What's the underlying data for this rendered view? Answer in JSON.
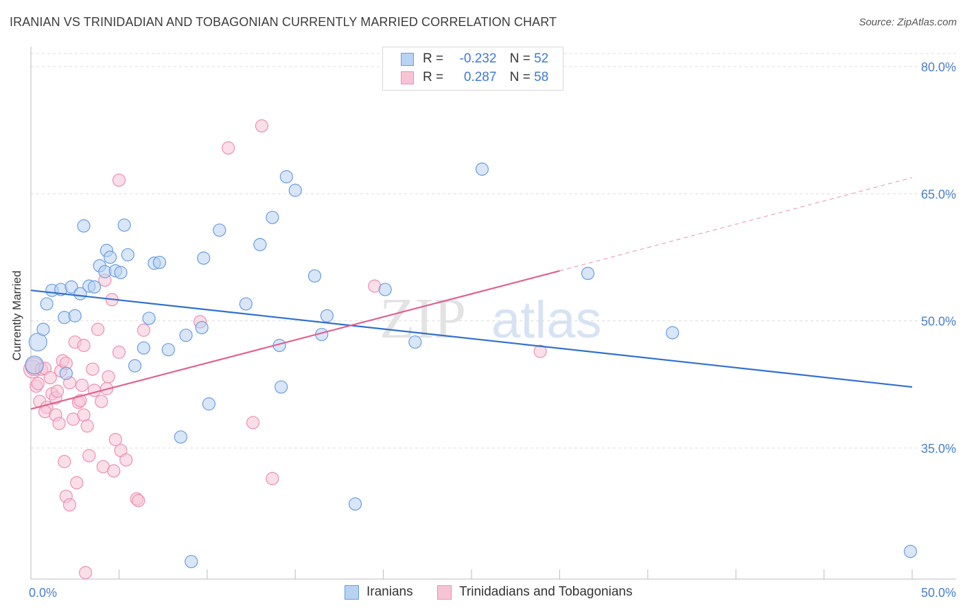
{
  "title": "IRANIAN VS TRINIDADIAN AND TOBAGONIAN CURRENTLY MARRIED CORRELATION CHART",
  "source": "Source: ZipAtlas.com",
  "watermark": {
    "zip": "ZIP",
    "atlas": "atlas"
  },
  "legend": {
    "r_label": "R =",
    "n_label": "N =",
    "rows": [
      {
        "r": "-0.232",
        "n": "52"
      },
      {
        "r": "0.287",
        "n": "58"
      }
    ]
  },
  "colors": {
    "blue_fill": "#b8d2f2",
    "blue_stroke": "#6a9be0",
    "blue_line": "#2f6fd0",
    "pink_fill": "#f7c4d6",
    "pink_stroke": "#ea8fb0",
    "pink_line": "#e06090",
    "grid": "#dcdcdc",
    "tick_text": "#4a7fc9"
  },
  "chart_data": {
    "type": "scatter",
    "ylabel": "Currently Married",
    "xlim": [
      0,
      50
    ],
    "ylim": [
      20,
      82
    ],
    "y_ticks": [
      {
        "value": 80,
        "label": "80.0%"
      },
      {
        "value": 65,
        "label": "65.0%"
      },
      {
        "value": 50,
        "label": "50.0%"
      },
      {
        "value": 35,
        "label": "35.0%"
      }
    ],
    "x_tick_labels": [
      {
        "value": 0,
        "label": "0.0%"
      },
      {
        "value": 50,
        "label": "50.0%"
      }
    ],
    "grid": true,
    "legend_position": "top-center",
    "series": [
      {
        "name": "Iranians",
        "color": "blue",
        "trend": {
          "x": [
            0,
            50
          ],
          "y": [
            53.6,
            42.2
          ],
          "dashed_from": null
        },
        "points": [
          [
            0.2,
            44.8
          ],
          [
            0.4,
            47.5
          ],
          [
            0.7,
            49.0
          ],
          [
            0.9,
            52.0
          ],
          [
            1.2,
            53.6
          ],
          [
            1.7,
            53.7
          ],
          [
            1.9,
            50.4
          ],
          [
            2.0,
            43.8
          ],
          [
            2.5,
            50.6
          ],
          [
            2.3,
            54.0
          ],
          [
            2.8,
            53.2
          ],
          [
            3.0,
            61.2
          ],
          [
            3.3,
            54.1
          ],
          [
            3.6,
            54.0
          ],
          [
            3.9,
            56.5
          ],
          [
            4.2,
            55.8
          ],
          [
            4.3,
            58.3
          ],
          [
            4.5,
            57.5
          ],
          [
            4.8,
            55.9
          ],
          [
            5.1,
            55.7
          ],
          [
            5.3,
            61.3
          ],
          [
            5.5,
            57.8
          ],
          [
            5.9,
            44.7
          ],
          [
            6.4,
            46.8
          ],
          [
            6.7,
            50.3
          ],
          [
            7.0,
            56.8
          ],
          [
            7.3,
            56.9
          ],
          [
            7.8,
            46.6
          ],
          [
            8.5,
            36.3
          ],
          [
            8.8,
            48.3
          ],
          [
            9.1,
            21.6
          ],
          [
            9.7,
            49.2
          ],
          [
            9.8,
            57.4
          ],
          [
            10.1,
            40.2
          ],
          [
            10.7,
            60.7
          ],
          [
            12.2,
            52.0
          ],
          [
            13.0,
            59.0
          ],
          [
            13.7,
            62.2
          ],
          [
            14.1,
            47.1
          ],
          [
            14.2,
            42.2
          ],
          [
            14.5,
            67.0
          ],
          [
            15.0,
            65.4
          ],
          [
            16.1,
            55.3
          ],
          [
            16.5,
            48.4
          ],
          [
            16.8,
            50.6
          ],
          [
            18.4,
            28.4
          ],
          [
            20.1,
            53.7
          ],
          [
            21.8,
            47.5
          ],
          [
            25.6,
            67.9
          ],
          [
            31.6,
            55.6
          ],
          [
            36.4,
            48.6
          ],
          [
            49.9,
            22.8
          ]
        ]
      },
      {
        "name": "Trinidadians and Tobagonians",
        "color": "pink",
        "trend": {
          "x": [
            0,
            30
          ],
          "y": [
            39.6,
            55.9
          ],
          "dashed_to": [
            50,
            66.9
          ]
        },
        "points": [
          [
            0.1,
            44.3
          ],
          [
            0.2,
            44.6
          ],
          [
            0.3,
            42.3
          ],
          [
            0.4,
            42.6
          ],
          [
            0.5,
            40.5
          ],
          [
            0.6,
            44.3
          ],
          [
            0.8,
            44.4
          ],
          [
            0.9,
            39.8
          ],
          [
            0.8,
            39.3
          ],
          [
            1.1,
            43.3
          ],
          [
            1.2,
            41.4
          ],
          [
            1.4,
            40.9
          ],
          [
            1.5,
            41.7
          ],
          [
            1.4,
            38.9
          ],
          [
            1.6,
            37.9
          ],
          [
            1.7,
            44.1
          ],
          [
            1.9,
            33.4
          ],
          [
            1.8,
            45.3
          ],
          [
            2.0,
            45.0
          ],
          [
            2.2,
            42.7
          ],
          [
            2.0,
            29.3
          ],
          [
            2.2,
            28.3
          ],
          [
            2.4,
            38.4
          ],
          [
            2.5,
            47.5
          ],
          [
            2.6,
            30.9
          ],
          [
            2.7,
            40.4
          ],
          [
            2.8,
            40.6
          ],
          [
            2.9,
            42.4
          ],
          [
            3.0,
            47.1
          ],
          [
            3.0,
            38.9
          ],
          [
            3.2,
            37.6
          ],
          [
            3.3,
            34.1
          ],
          [
            3.1,
            20.3
          ],
          [
            3.6,
            41.8
          ],
          [
            3.8,
            49.0
          ],
          [
            4.0,
            40.5
          ],
          [
            4.1,
            32.8
          ],
          [
            4.2,
            54.8
          ],
          [
            4.3,
            42.0
          ],
          [
            4.4,
            43.4
          ],
          [
            4.6,
            52.5
          ],
          [
            4.7,
            32.3
          ],
          [
            4.8,
            36.0
          ],
          [
            5.0,
            46.3
          ],
          [
            5.1,
            34.7
          ],
          [
            5.0,
            66.6
          ],
          [
            5.4,
            33.6
          ],
          [
            6.0,
            29.0
          ],
          [
            6.1,
            28.8
          ],
          [
            6.4,
            48.9
          ],
          [
            9.6,
            49.9
          ],
          [
            11.2,
            70.4
          ],
          [
            12.6,
            38.0
          ],
          [
            13.1,
            73.0
          ],
          [
            13.7,
            31.4
          ],
          [
            19.5,
            54.1
          ],
          [
            28.9,
            46.4
          ],
          [
            3.5,
            44.3
          ]
        ]
      }
    ]
  }
}
